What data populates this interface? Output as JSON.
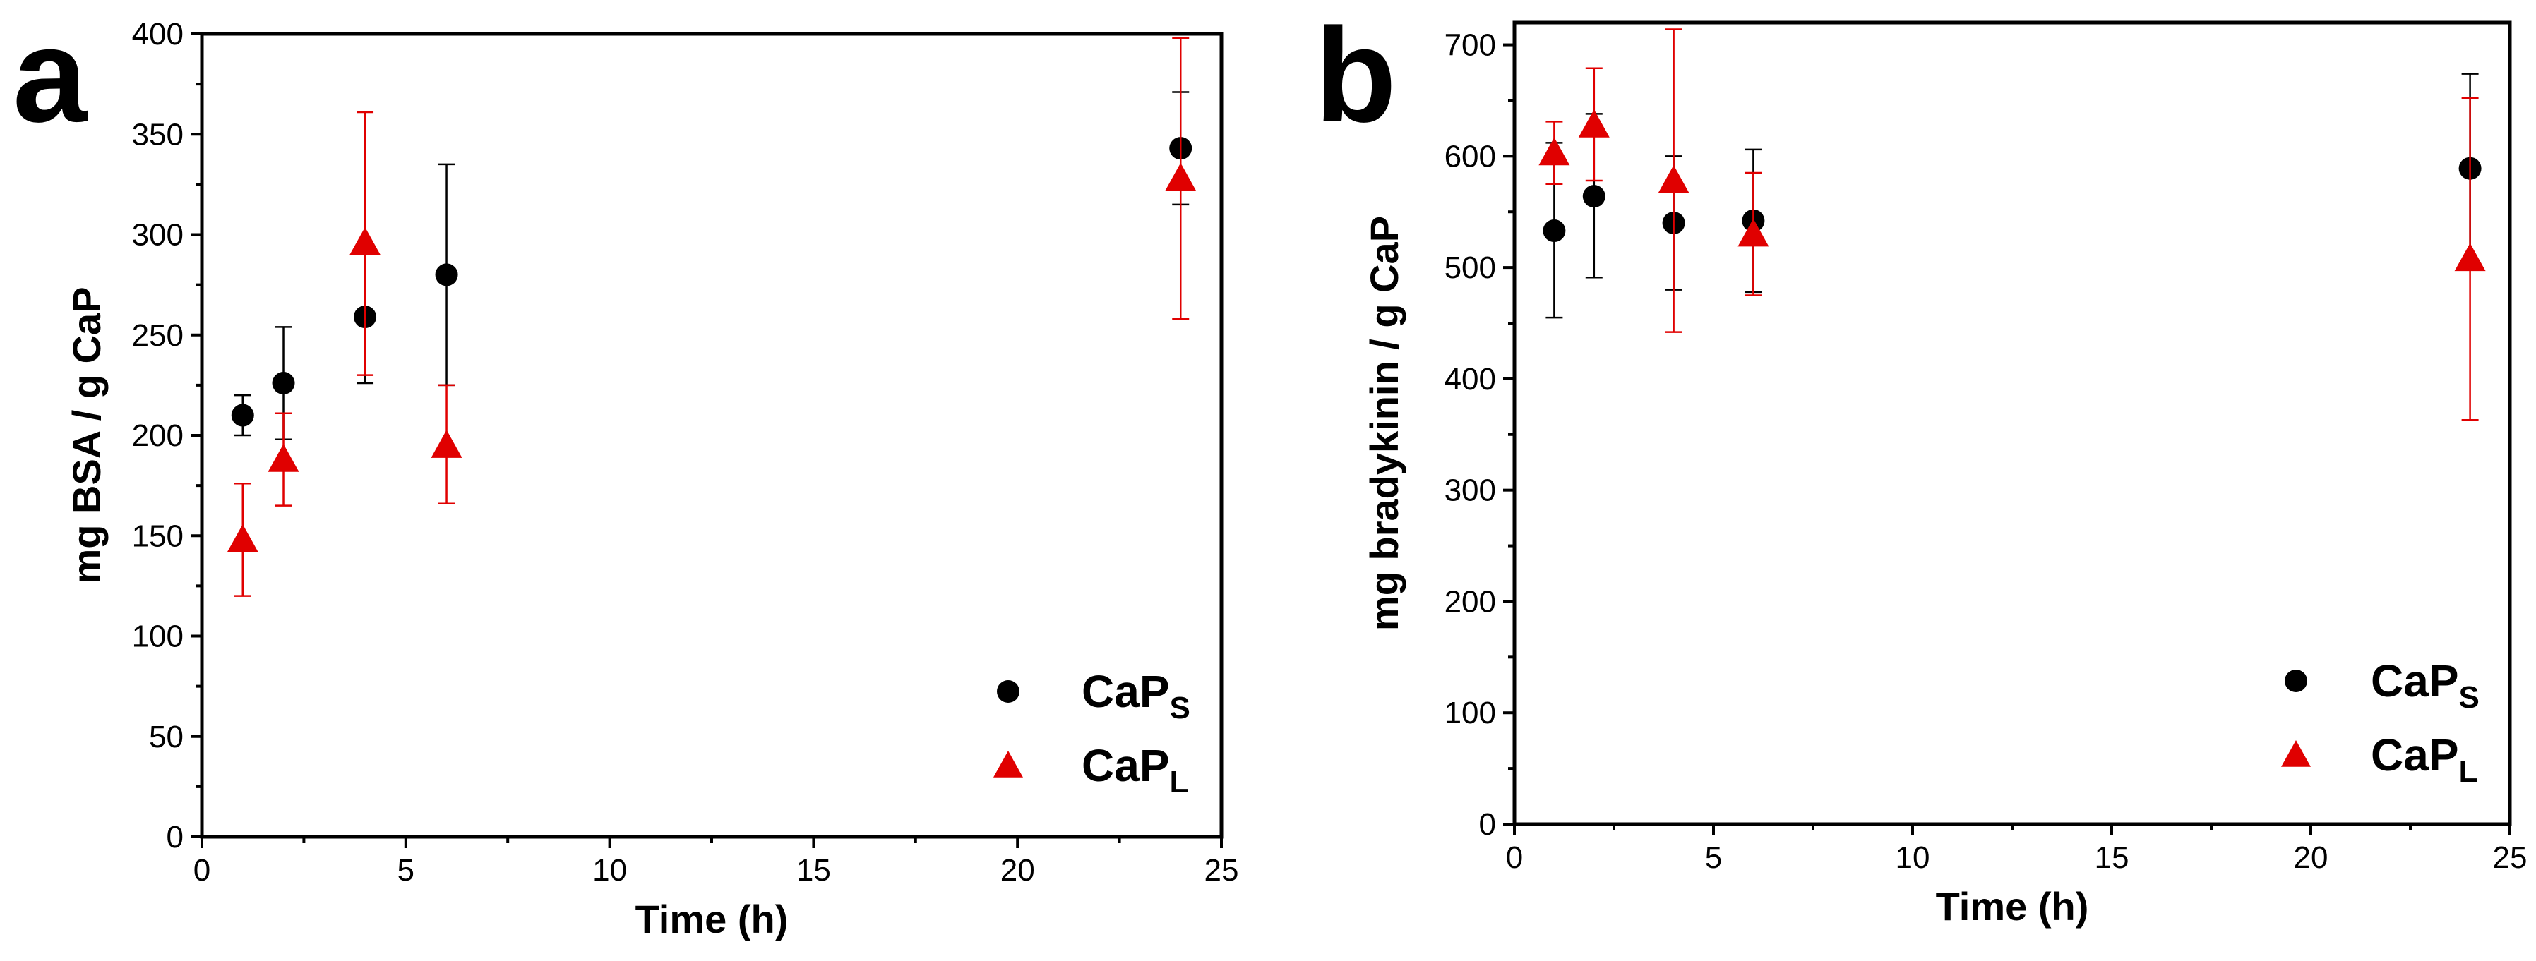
{
  "chart_data": [
    {
      "type": "scatter",
      "panel_label": "a",
      "xlabel": "Time (h)",
      "ylabel": "mg BSA / g CaP",
      "xlim": [
        0,
        25
      ],
      "ylim": [
        0,
        400
      ],
      "xticks": [
        0,
        5,
        10,
        15,
        20,
        25
      ],
      "yticks": [
        0,
        50,
        100,
        150,
        200,
        250,
        300,
        350,
        400
      ],
      "xtick_labels": [
        "0",
        "5",
        "10",
        "15",
        "20",
        "25"
      ],
      "ytick_labels": [
        "0",
        "50",
        "100",
        "150",
        "200",
        "250",
        "300",
        "350",
        "400"
      ],
      "legend_position": "bottom-right",
      "series": [
        {
          "name": "CaP",
          "subscript": "S",
          "marker": "circle",
          "color": "#000000",
          "points": [
            {
              "x": 1,
              "y": 210,
              "low": 200,
              "high": 220
            },
            {
              "x": 2,
              "y": 226,
              "low": 198,
              "high": 254
            },
            {
              "x": 4,
              "y": 259,
              "low": 226,
              "high": 292
            },
            {
              "x": 6,
              "y": 280,
              "low": 225,
              "high": 335
            },
            {
              "x": 24,
              "y": 343,
              "low": 315,
              "high": 371
            }
          ]
        },
        {
          "name": "CaP",
          "subscript": "L",
          "marker": "triangle",
          "color": "#e00000",
          "points": [
            {
              "x": 1,
              "y": 148,
              "low": 120,
              "high": 176
            },
            {
              "x": 2,
              "y": 188,
              "low": 165,
              "high": 211
            },
            {
              "x": 4,
              "y": 296,
              "low": 230,
              "high": 361
            },
            {
              "x": 6,
              "y": 195,
              "low": 166,
              "high": 225
            },
            {
              "x": 24,
              "y": 328,
              "low": 258,
              "high": 398
            }
          ]
        }
      ]
    },
    {
      "type": "scatter",
      "panel_label": "b",
      "xlabel": "Time (h)",
      "ylabel": "mg bradykinin / g CaP",
      "xlim": [
        0,
        25
      ],
      "ylim": [
        0,
        720
      ],
      "xticks": [
        0,
        5,
        10,
        15,
        20,
        25
      ],
      "yticks": [
        0,
        100,
        200,
        300,
        400,
        500,
        600,
        700
      ],
      "xtick_labels": [
        "0",
        "5",
        "10",
        "15",
        "20",
        "25"
      ],
      "ytick_labels": [
        "0",
        "100",
        "200",
        "300",
        "400",
        "500",
        "600",
        "700"
      ],
      "legend_position": "bottom-right",
      "series": [
        {
          "name": "CaP",
          "subscript": "S",
          "marker": "circle",
          "color": "#000000",
          "points": [
            {
              "x": 1,
              "y": 533,
              "low": 455,
              "high": 612
            },
            {
              "x": 2,
              "y": 564,
              "low": 491,
              "high": 638
            },
            {
              "x": 4,
              "y": 540,
              "low": 480,
              "high": 600
            },
            {
              "x": 6,
              "y": 542,
              "low": 478,
              "high": 606
            },
            {
              "x": 24,
              "y": 589,
              "low": 505,
              "high": 674
            }
          ]
        },
        {
          "name": "CaP",
          "subscript": "L",
          "marker": "triangle",
          "color": "#e00000",
          "points": [
            {
              "x": 1,
              "y": 603,
              "low": 575,
              "high": 631
            },
            {
              "x": 2,
              "y": 628,
              "low": 578,
              "high": 679
            },
            {
              "x": 4,
              "y": 578,
              "low": 442,
              "high": 714
            },
            {
              "x": 6,
              "y": 530,
              "low": 475,
              "high": 585
            },
            {
              "x": 24,
              "y": 508,
              "low": 363,
              "high": 652
            }
          ]
        }
      ]
    }
  ]
}
